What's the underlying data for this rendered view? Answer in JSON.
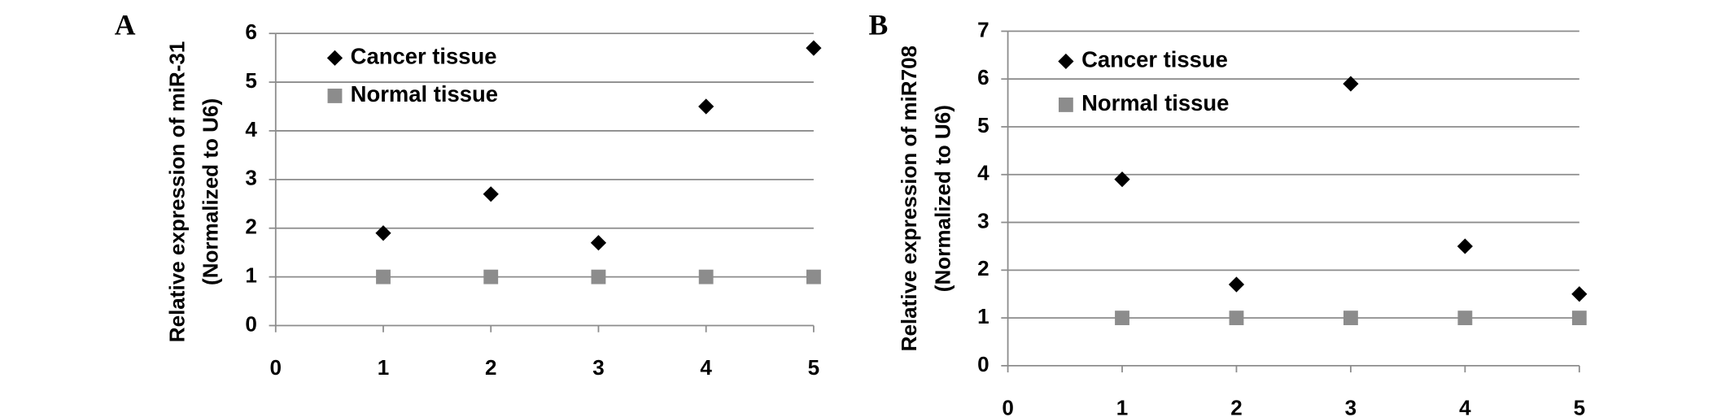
{
  "chart_data": [
    {
      "type": "scatter",
      "panel_label": "A",
      "ylabel_lines": [
        "Relative expression of miR-31",
        "(Normalized to U6)"
      ],
      "x": [
        1,
        2,
        3,
        4,
        5
      ],
      "series": [
        {
          "name": "Cancer tissue",
          "color": "#000000",
          "marker": "diamond",
          "values": [
            1.9,
            2.7,
            1.7,
            4.5,
            5.7
          ]
        },
        {
          "name": "Normal tissue",
          "color": "#8c8c8c",
          "marker": "square",
          "values": [
            1,
            1,
            1,
            1,
            1
          ]
        }
      ],
      "xlim": [
        0,
        5
      ],
      "xticks": [
        0,
        1,
        2,
        3,
        4,
        5
      ],
      "ylim": [
        0,
        6
      ],
      "yticks": [
        0,
        1,
        2,
        3,
        4,
        5,
        6
      ],
      "grid": true
    },
    {
      "type": "scatter",
      "panel_label": "B",
      "ylabel_lines": [
        "Relative expression of miR708",
        "(Normalized to U6)"
      ],
      "x": [
        1,
        2,
        3,
        4,
        5
      ],
      "series": [
        {
          "name": "Cancer tissue",
          "color": "#000000",
          "marker": "diamond",
          "values": [
            3.9,
            1.7,
            5.9,
            2.5,
            1.5
          ]
        },
        {
          "name": "Normal tissue",
          "color": "#8c8c8c",
          "marker": "square",
          "values": [
            1,
            1,
            1,
            1,
            1
          ]
        }
      ],
      "xlim": [
        0,
        5
      ],
      "xticks": [
        0,
        1,
        2,
        3,
        4,
        5
      ],
      "ylim": [
        0,
        7
      ],
      "yticks": [
        0,
        1,
        2,
        3,
        4,
        5,
        6,
        7
      ],
      "grid": true
    }
  ]
}
